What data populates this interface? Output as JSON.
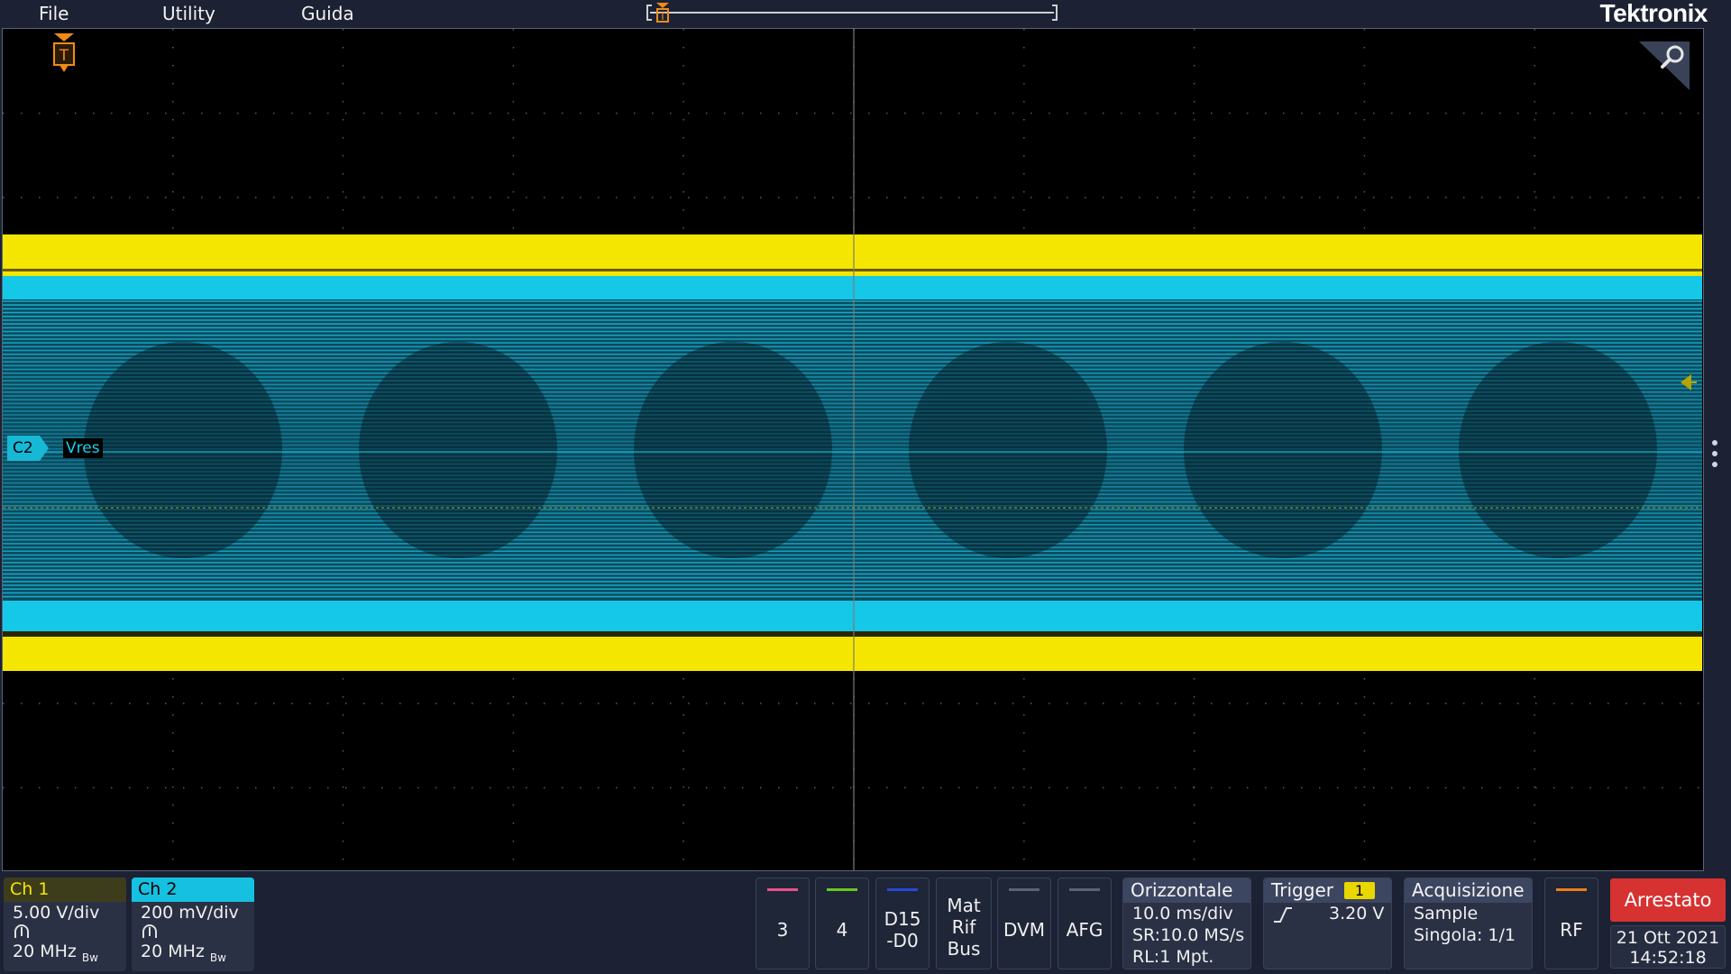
{
  "menu": {
    "file": "File",
    "utility": "Utility",
    "help": "Guida"
  },
  "brand": "Tektronix",
  "trigger_marker_letter": "T",
  "waveform": {
    "ch2_tag": "C2",
    "ch2_label": "Vres",
    "ch1_color": "#f4e600",
    "ch2_color": "#16c8e8",
    "trigger_level_color": "#b8a400"
  },
  "channels": [
    {
      "name": "Ch 1",
      "scale": "5.00 V/div",
      "bandwidth": "20 MHz",
      "bw_suffix": "Bw",
      "color": "#f4e600",
      "header_bg": "#3d3d1c"
    },
    {
      "name": "Ch 2",
      "scale": "200 mV/div",
      "bandwidth": "20 MHz",
      "bw_suffix": "Bw",
      "color": "#16c8e8",
      "header_bg": "#16c0e0"
    }
  ],
  "add_buttons": [
    {
      "label": "3",
      "color": "#e8508c"
    },
    {
      "label": "4",
      "color": "#66c81e"
    },
    {
      "label": "D15\n-D0",
      "color": "#2848d8"
    },
    {
      "label": "Mat\nRif\nBus",
      "color": ""
    },
    {
      "label": "DVM",
      "color": "#5a6275"
    },
    {
      "label": "AFG",
      "color": "#5a6275"
    }
  ],
  "horizontal": {
    "title": "Orizzontale",
    "scale": "10.0 ms/div",
    "sample_rate": "SR:10.0 MS/s",
    "record_length": "RL:1 Mpt."
  },
  "trigger": {
    "title": "Trigger",
    "source": "1",
    "level": "3.20 V",
    "source_color": "#e8d800"
  },
  "acquisition": {
    "title": "Acquisizione",
    "mode": "Sample",
    "single": "Singola: 1/1"
  },
  "rf": {
    "label": "RF",
    "color": "#f07c18"
  },
  "run_state": "Arrestato",
  "date": "21 Ott 2021",
  "time": "14:52:18",
  "icons": [
    "trigger-position-icon",
    "zoom-icon",
    "probe-icon",
    "rising-edge-icon",
    "trigger-level-icon",
    "more-options-icon"
  ]
}
